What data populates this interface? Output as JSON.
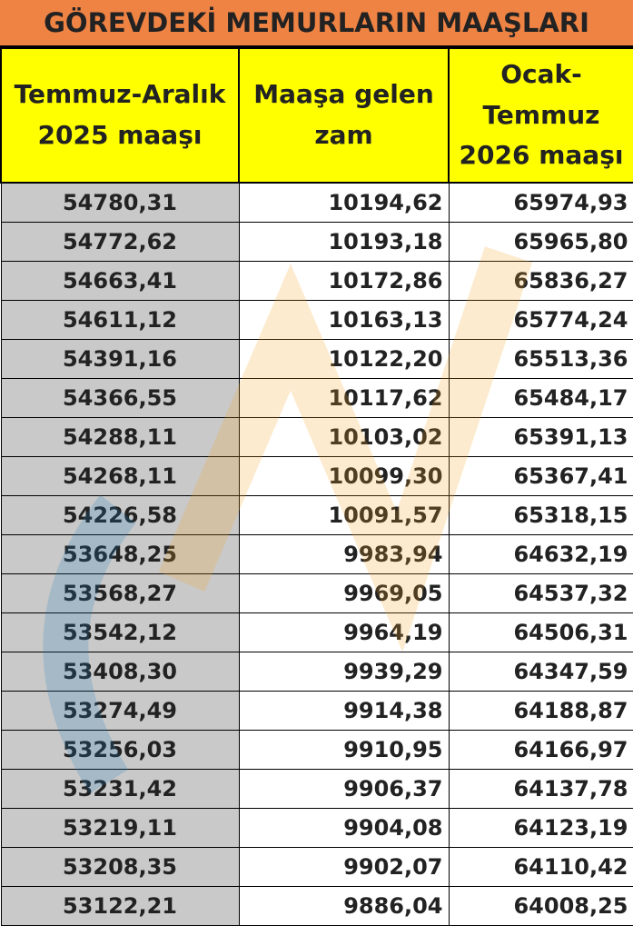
{
  "header": {
    "title": "GÖREVDEKİ MEMURLARIN MAAŞLARI"
  },
  "table": {
    "columns": [
      "Temmuz-Aralık 2025 maaşı",
      "Maaşa gelen zam",
      "Ocak-Temmuz 2026 maaşı"
    ],
    "rows": [
      [
        "54780,31",
        "10194,62",
        "65974,93"
      ],
      [
        "54772,62",
        "10193,18",
        "65965,80"
      ],
      [
        "54663,41",
        "10172,86",
        "65836,27"
      ],
      [
        "54611,12",
        "10163,13",
        "65774,24"
      ],
      [
        "54391,16",
        "10122,20",
        "65513,36"
      ],
      [
        "54366,55",
        "10117,62",
        "65484,17"
      ],
      [
        "54288,11",
        "10103,02",
        "65391,13"
      ],
      [
        "54268,11",
        "10099,30",
        "65367,41"
      ],
      [
        "54226,58",
        "10091,57",
        "65318,15"
      ],
      [
        "53648,25",
        "9983,94",
        "64632,19"
      ],
      [
        "53568,27",
        "9969,05",
        "64537,32"
      ],
      [
        "53542,12",
        "9964,19",
        "64506,31"
      ],
      [
        "53408,30",
        "9939,29",
        "64347,59"
      ],
      [
        "53274,49",
        "9914,38",
        "64188,87"
      ],
      [
        "53256,03",
        "9910,95",
        "64166,97"
      ],
      [
        "53231,42",
        "9906,37",
        "64137,78"
      ],
      [
        "53219,11",
        "9904,08",
        "64123,19"
      ],
      [
        "53208,35",
        "9902,07",
        "64110,42"
      ],
      [
        "53122,21",
        "9886,04",
        "64008,25"
      ]
    ]
  }
}
